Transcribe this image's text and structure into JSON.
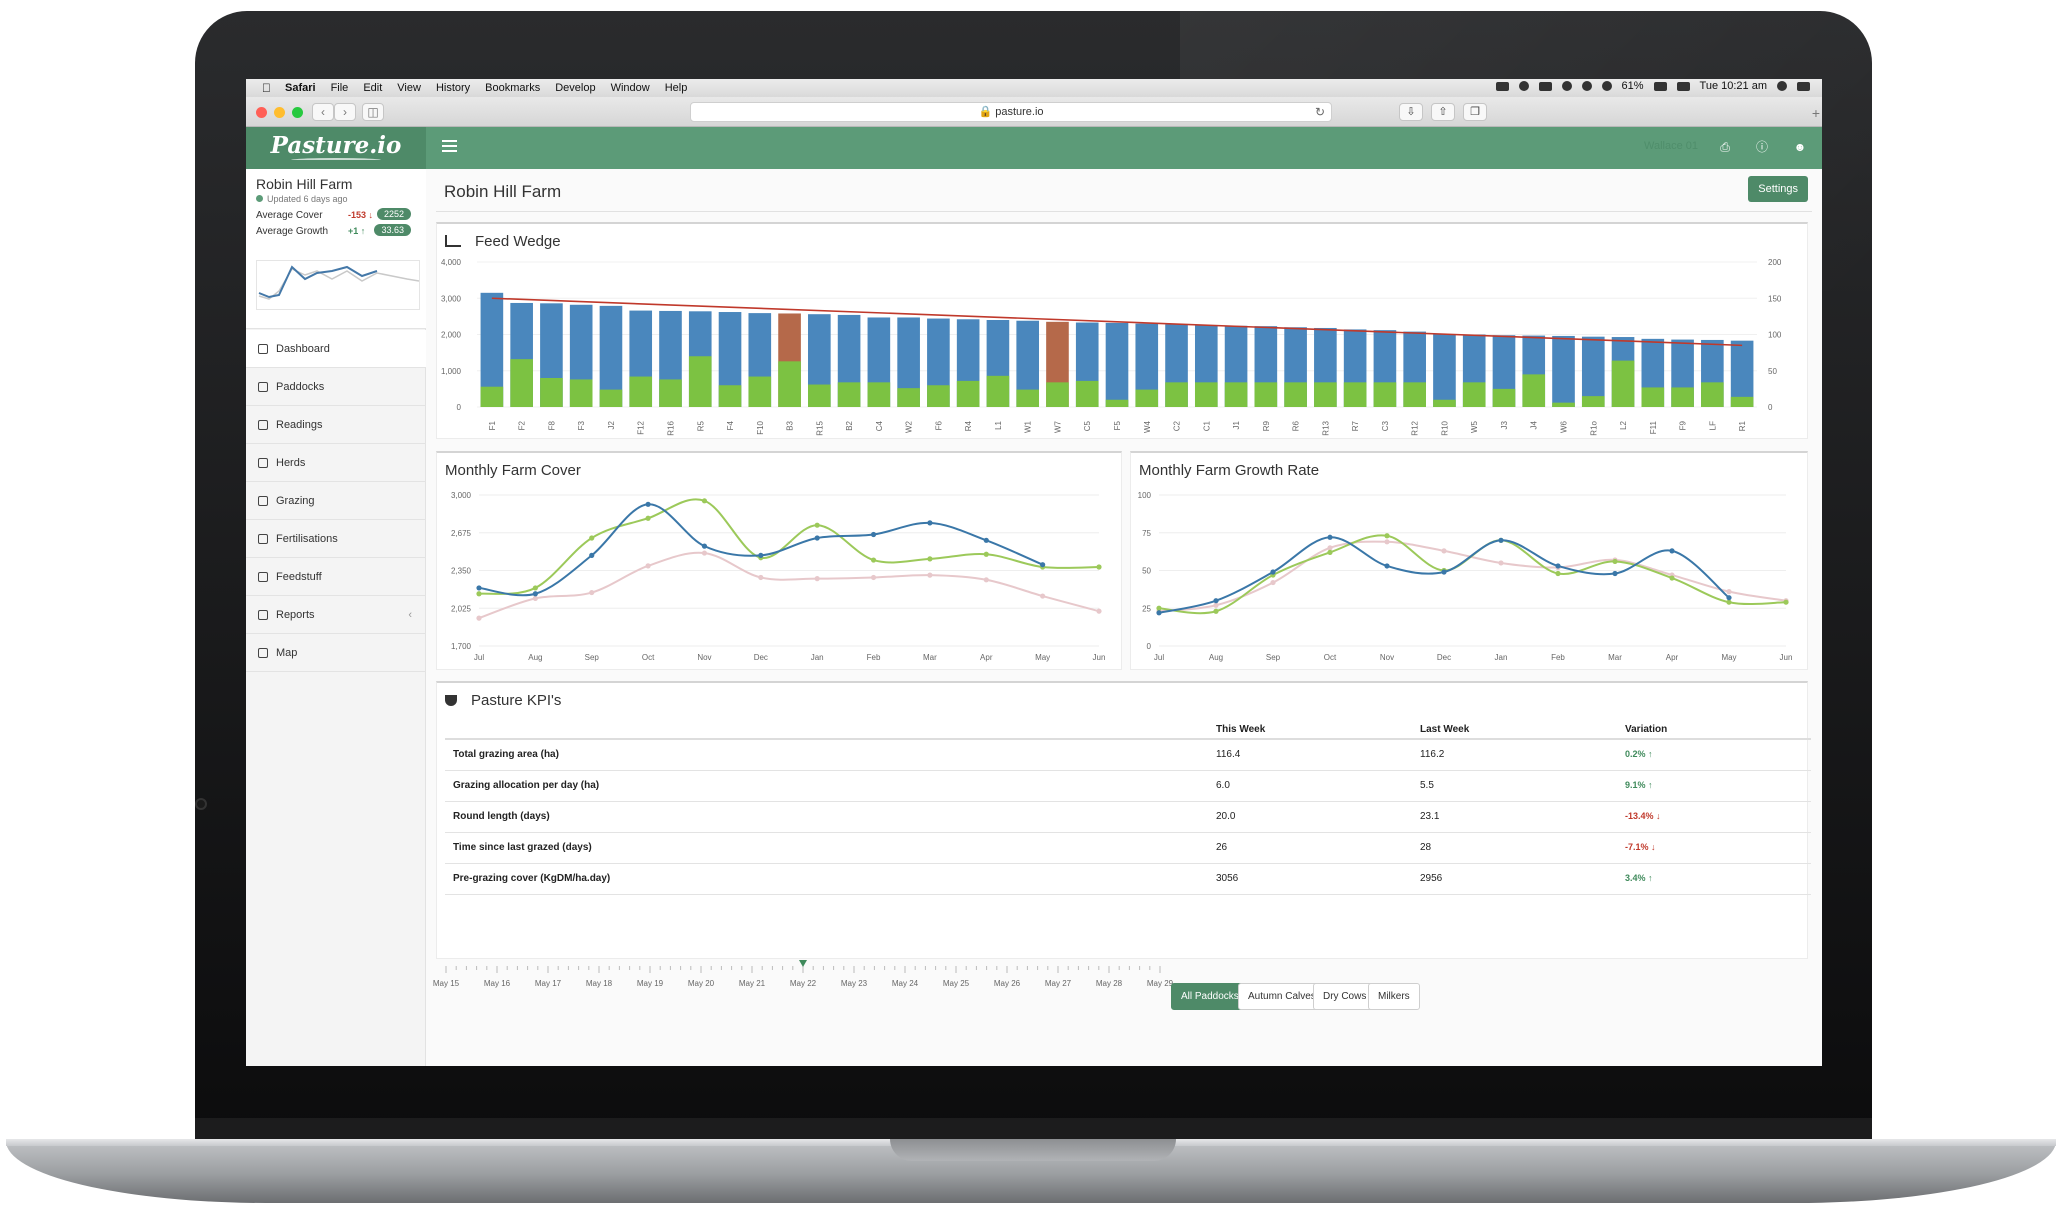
{
  "macbar": {
    "app": "Safari",
    "menus": [
      "File",
      "Edit",
      "View",
      "History",
      "Bookmarks",
      "Develop",
      "Window",
      "Help"
    ],
    "battery": "61%",
    "clock": "Tue 10:21 am"
  },
  "browser": {
    "url": "pasture.io"
  },
  "app": {
    "logo": "Pasture.io",
    "header_faded": "Wallace 01"
  },
  "sidebar": {
    "farm_name": "Robin Hill Farm",
    "updated": "Updated 6 days ago",
    "metrics": [
      {
        "label": "Average Cover",
        "delta": "-153",
        "value": "2252"
      },
      {
        "label": "Average Growth",
        "delta": "+1",
        "value": "33.63"
      }
    ],
    "nav": [
      "Dashboard",
      "Paddocks",
      "Readings",
      "Herds",
      "Grazing",
      "Fertilisations",
      "Feedstuff",
      "Reports",
      "Map"
    ]
  },
  "main": {
    "page_title": "Robin Hill Farm",
    "settings_label": "Settings"
  },
  "chart_data": [
    {
      "type": "bar",
      "title": "Feed Wedge",
      "categories": [
        "F1",
        "F2",
        "F8",
        "F3",
        "J2",
        "F12",
        "R16",
        "R5",
        "F4",
        "F10",
        "B3",
        "R15",
        "B2",
        "C4",
        "W2",
        "F6",
        "R4",
        "L1",
        "W1",
        "W7",
        "C5",
        "F5",
        "W4",
        "C2",
        "C1",
        "J1",
        "R9",
        "R6",
        "R13",
        "R7",
        "C3",
        "R12",
        "R10",
        "W5",
        "J3",
        "J4",
        "W6",
        "R1o",
        "L2",
        "F11",
        "F9",
        "LF",
        "R1"
      ],
      "series": [
        {
          "name": "Cover",
          "values": [
            3150,
            2870,
            2860,
            2820,
            2790,
            2660,
            2650,
            2640,
            2620,
            2590,
            2580,
            2560,
            2540,
            2470,
            2470,
            2440,
            2420,
            2400,
            2380,
            2350,
            2330,
            2320,
            2300,
            2280,
            2260,
            2240,
            2230,
            2200,
            2180,
            2140,
            2120,
            2080,
            2000,
            2000,
            1980,
            1970,
            1960,
            1940,
            1930,
            1880,
            1860,
            1850,
            1830
          ]
        },
        {
          "name": "Growth",
          "values": [
            28,
            66,
            40,
            38,
            24,
            42,
            38,
            70,
            30,
            42,
            63,
            31,
            34,
            34,
            26,
            30,
            36,
            43,
            24,
            34,
            36,
            10,
            24,
            34,
            34,
            34,
            34,
            34,
            34,
            34,
            34,
            34,
            10,
            34,
            25,
            45,
            6,
            15,
            64,
            27,
            27,
            34,
            14
          ]
        }
      ],
      "highlight": [
        "B3",
        "W7"
      ],
      "colors": {
        "bar": "#4a87bd",
        "highlight": "#b5694a",
        "growth": "#7cc242",
        "target": "#c0392b"
      },
      "target_line": [
        3000,
        1700
      ],
      "ylim": [
        0,
        4000
      ],
      "y2lim": [
        0,
        200
      ],
      "yticks": [
        "0",
        "1,000",
        "2,000",
        "3,000",
        "4,000"
      ],
      "y2ticks": [
        "0",
        "50",
        "100",
        "150",
        "200"
      ]
    },
    {
      "type": "line",
      "title": "Monthly Farm Cover",
      "x": [
        "Jul",
        "Aug",
        "Sep",
        "Oct",
        "Nov",
        "Dec",
        "Jan",
        "Feb",
        "Mar",
        "Apr",
        "May",
        "Jun"
      ],
      "ylim": [
        1700,
        3000
      ],
      "yticks": [
        "1,700",
        "2,025",
        "2,350",
        "2,675",
        "3,000"
      ],
      "series": [
        {
          "color": "#3a77a8",
          "values": [
            2200,
            2150,
            2480,
            2920,
            2560,
            2480,
            2630,
            2660,
            2760,
            2610,
            2400,
            null
          ]
        },
        {
          "color": "#9cc95a",
          "values": [
            2150,
            2200,
            2630,
            2800,
            2950,
            2460,
            2740,
            2440,
            2450,
            2490,
            2380,
            2380
          ]
        },
        {
          "color": "#e7c8cb",
          "values": [
            1940,
            2110,
            2160,
            2390,
            2500,
            2290,
            2280,
            2290,
            2310,
            2270,
            2130,
            2000
          ]
        }
      ]
    },
    {
      "type": "line",
      "title": "Monthly Farm Growth Rate",
      "x": [
        "Jul",
        "Aug",
        "Sep",
        "Oct",
        "Nov",
        "Dec",
        "Jan",
        "Feb",
        "Mar",
        "Apr",
        "May",
        "Jun"
      ],
      "ylim": [
        0,
        100
      ],
      "yticks": [
        "0",
        "25",
        "50",
        "75",
        "100"
      ],
      "series": [
        {
          "color": "#3a77a8",
          "values": [
            22,
            30,
            49,
            72,
            53,
            49,
            70,
            53,
            48,
            63,
            32,
            null
          ]
        },
        {
          "color": "#9cc95a",
          "values": [
            25,
            23,
            47,
            62,
            73,
            50,
            70,
            48,
            56,
            45,
            29,
            29
          ]
        },
        {
          "color": "#e7c8cb",
          "values": [
            23,
            27,
            42,
            65,
            69,
            63,
            55,
            52,
            57,
            47,
            36,
            30
          ]
        }
      ]
    }
  ],
  "kpis": {
    "title": "Pasture KPI's",
    "headers": [
      "This Week",
      "Last Week",
      "Variation"
    ],
    "rows": [
      {
        "label": "Total grazing area (ha)",
        "this_week": "116.4",
        "last_week": "116.2",
        "variation": "0.2%",
        "trend": "up"
      },
      {
        "label": "Grazing allocation per day (ha)",
        "this_week": "6.0",
        "last_week": "5.5",
        "variation": "9.1%",
        "trend": "up"
      },
      {
        "label": "Round length (days)",
        "this_week": "20.0",
        "last_week": "23.1",
        "variation": "-13.4%",
        "trend": "down"
      },
      {
        "label": "Time since last grazed (days)",
        "this_week": "26",
        "last_week": "28",
        "variation": "-7.1%",
        "trend": "down"
      },
      {
        "label": "Pre-grazing cover (KgDM/ha.day)",
        "this_week": "3056",
        "last_week": "2956",
        "variation": "3.4%",
        "trend": "up"
      }
    ]
  },
  "timeline": {
    "dates": [
      "May 15",
      "May 16",
      "May 17",
      "May 18",
      "May 19",
      "May 20",
      "May 21",
      "May 22",
      "May 23",
      "May 24",
      "May 25",
      "May 26",
      "May 27",
      "May 28",
      "May 29"
    ],
    "selected": "May 22",
    "filters": [
      "All Paddocks",
      "Autumn Calves",
      "Dry Cows",
      "Milkers"
    ]
  }
}
